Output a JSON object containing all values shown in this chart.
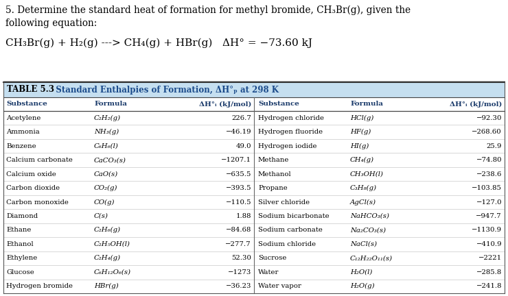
{
  "title_line1": "5. Determine the standard heat of formation for methyl bromide, CH₃Br(g), given the",
  "title_line2": "following equation:",
  "equation": "CH₃Br(g) + H₂(g) ---> CH₄(g) + HBr(g)   ΔH° = −73.60 kJ",
  "table_title_bold": "TABLE 5.3",
  "table_title_rest": "   Standard Enthalpies of Formation, ΔH°ₚ at 298 K",
  "col_headers_left": [
    "Substance",
    "Formula",
    "ΔH°ᵢ (kJ/mol)"
  ],
  "col_headers_right": [
    "Substance",
    "Formula",
    "ΔH°ᵢ (kJ/mol)"
  ],
  "left_data": [
    [
      "Acetylene",
      "C₂H₂(g)",
      "226.7"
    ],
    [
      "Ammonia",
      "NH₃(g)",
      "−46.19"
    ],
    [
      "Benzene",
      "C₆H₆(l)",
      "49.0"
    ],
    [
      "Calcium carbonate",
      "CaCO₃(s)",
      "−1207.1"
    ],
    [
      "Calcium oxide",
      "CaO(s)",
      "−635.5"
    ],
    [
      "Carbon dioxide",
      "CO₂(g)",
      "−393.5"
    ],
    [
      "Carbon monoxide",
      "CO(g)",
      "−110.5"
    ],
    [
      "Diamond",
      "C(s)",
      "1.88"
    ],
    [
      "Ethane",
      "C₂H₆(g)",
      "−84.68"
    ],
    [
      "Ethanol",
      "C₂H₅OH(l)",
      "−277.7"
    ],
    [
      "Ethylene",
      "C₂H₄(g)",
      "52.30"
    ],
    [
      "Glucose",
      "C₆H₁₂O₆(s)",
      "−1273"
    ],
    [
      "Hydrogen bromide",
      "HBr(g)",
      "−36.23"
    ]
  ],
  "right_data": [
    [
      "Hydrogen chloride",
      "HCl(g)",
      "−92.30"
    ],
    [
      "Hydrogen fluoride",
      "HF(g)",
      "−268.60"
    ],
    [
      "Hydrogen iodide",
      "HI(g)",
      "25.9"
    ],
    [
      "Methane",
      "CH₄(g)",
      "−74.80"
    ],
    [
      "Methanol",
      "CH₃OH(l)",
      "−238.6"
    ],
    [
      "Propane",
      "C₃H₈(g)",
      "−103.85"
    ],
    [
      "Silver chloride",
      "AgCl(s)",
      "−127.0"
    ],
    [
      "Sodium bicarbonate",
      "NaHCO₃(s)",
      "−947.7"
    ],
    [
      "Sodium carbonate",
      "Na₂CO₃(s)",
      "−1130.9"
    ],
    [
      "Sodium chloride",
      "NaCl(s)",
      "−410.9"
    ],
    [
      "Sucrose",
      "C₁₂H₂₂O₁₁(s)",
      "−2221"
    ],
    [
      "Water",
      "H₂O(l)",
      "−285.8"
    ],
    [
      "Water vapor",
      "H₂O(g)",
      "−241.8"
    ]
  ],
  "table_title_bg": "#c5dff0",
  "table_border_color": "#777777",
  "mid_divider_color": "#888888",
  "row_line_color": "#cccccc",
  "header_line_color": "#555555",
  "bg_color": "#ffffff",
  "text_color": "#000000",
  "header_text_color": "#1a3a6a",
  "title_text_color": "#000000",
  "table_title_text_bold_color": "#000000",
  "table_title_text_rest_color": "#1a4a8a"
}
